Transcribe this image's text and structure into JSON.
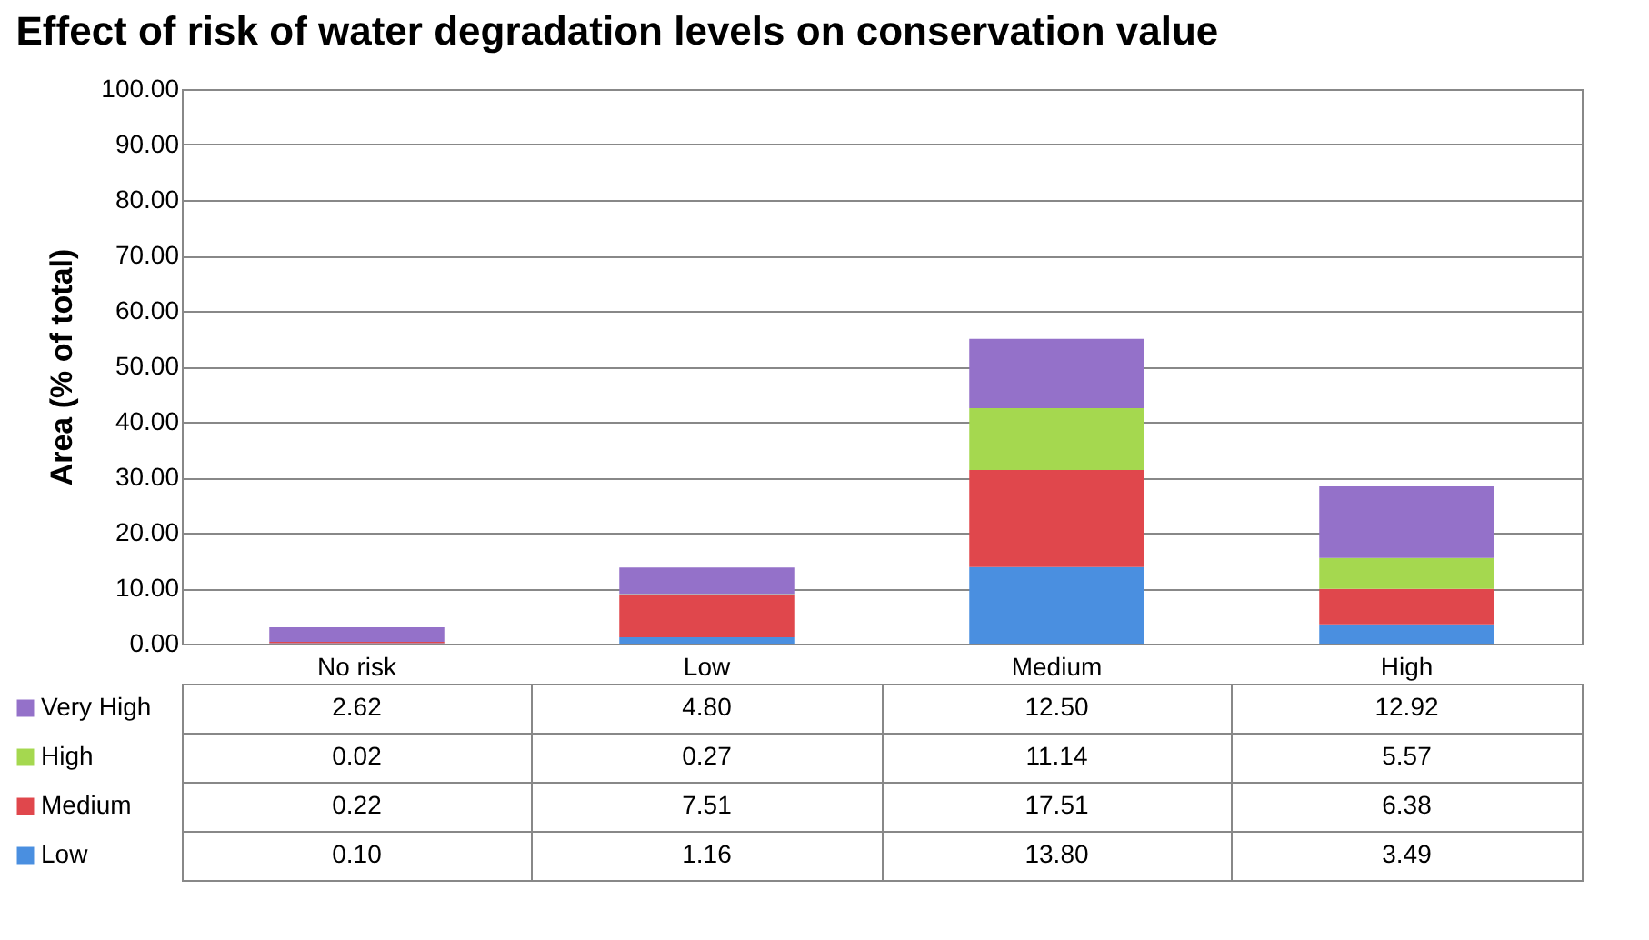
{
  "chart_data": {
    "type": "bar",
    "title": "Effect of risk of water degradation levels on conservation value",
    "ylabel": "Area (% of total)",
    "categories": [
      "No risk",
      "Low",
      "Medium",
      "High"
    ],
    "stacked": true,
    "legend": "bottom",
    "grid": "y",
    "ylim": [
      0,
      100
    ],
    "yticks": [
      {
        "value": 0,
        "label": "0.00"
      },
      {
        "value": 10,
        "label": "10.00"
      },
      {
        "value": 20,
        "label": "20.00"
      },
      {
        "value": 30,
        "label": "30.00"
      },
      {
        "value": 40,
        "label": "40.00"
      },
      {
        "value": 50,
        "label": "50.00"
      },
      {
        "value": 60,
        "label": "60.00"
      },
      {
        "value": 70,
        "label": "70.00"
      },
      {
        "value": 80,
        "label": "80.00"
      },
      {
        "value": 90,
        "label": "90.00"
      },
      {
        "value": 100,
        "label": "100.00"
      }
    ],
    "series": [
      {
        "name": "Low",
        "color": "#4a8fe0",
        "values": [
          0.1,
          1.16,
          13.8,
          3.49
        ],
        "value_labels": [
          "0.10",
          "1.16",
          "13.80",
          "3.49"
        ]
      },
      {
        "name": "Medium",
        "color": "#e0474c",
        "values": [
          0.22,
          7.51,
          17.51,
          6.38
        ],
        "value_labels": [
          "0.22",
          "7.51",
          "17.51",
          "6.38"
        ]
      },
      {
        "name": "High",
        "color": "#a5d84f",
        "values": [
          0.02,
          0.27,
          11.14,
          5.57
        ],
        "value_labels": [
          "0.02",
          "0.27",
          "11.14",
          "5.57"
        ]
      },
      {
        "name": "Very High",
        "color": "#9471c9",
        "values": [
          2.62,
          4.8,
          12.5,
          12.92
        ],
        "value_labels": [
          "2.62",
          "4.80",
          "12.50",
          "12.92"
        ]
      }
    ]
  }
}
